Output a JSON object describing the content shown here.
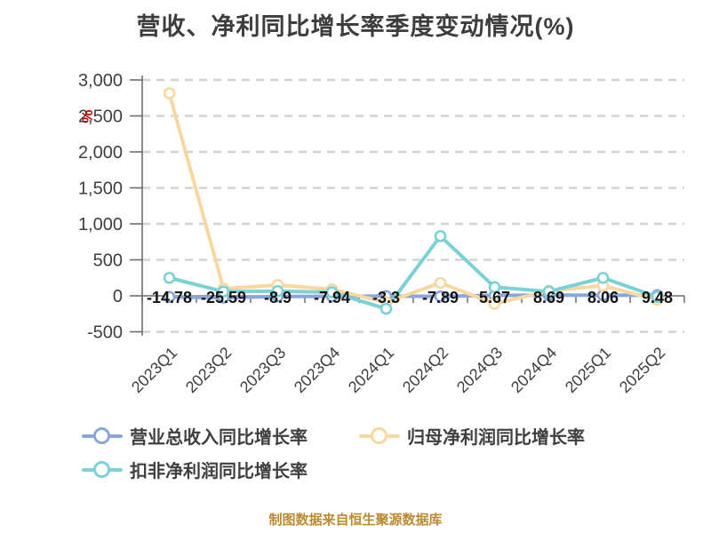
{
  "title": "营收、净利同比增长率季度变动情况(%)",
  "caption": "制图数据来自恒生聚源数据库",
  "y_axis": {
    "unit": "%",
    "unit_color": "#c00000",
    "tick_labels": [
      "-500",
      "0",
      "500",
      "1,000",
      "1,500",
      "2,000",
      "2,500",
      "3,000"
    ],
    "tick_values": [
      -500,
      0,
      500,
      1000,
      1500,
      2000,
      2500,
      3000
    ]
  },
  "chart_data": {
    "type": "line",
    "title": "营收、净利同比增长率季度变动情况(%)",
    "xlabel": "",
    "ylabel": "%",
    "ylim": [
      -500,
      3000
    ],
    "grid": "horizontal dashed",
    "legend_position": "bottom-left",
    "categories": [
      "2023Q1",
      "2023Q2",
      "2023Q3",
      "2023Q4",
      "2024Q1",
      "2024Q2",
      "2024Q3",
      "2024Q4",
      "2025Q1",
      "2025Q2"
    ],
    "series": [
      {
        "name": "营业总收入同比增长率",
        "slug": "total-revenue-yoy-growth",
        "color": "#8ba6d9",
        "values": [
          -14.78,
          -25.59,
          -8.9,
          -7.94,
          -3.3,
          -7.89,
          5.67,
          8.69,
          8.06,
          9.48
        ],
        "labels": [
          "-14.78",
          "-25.59",
          "-8.9",
          "-7.94",
          "-3.3",
          "-7.89",
          "5.67",
          "8.69",
          "8.06",
          "9.48"
        ]
      },
      {
        "name": "归母净利润同比增长率",
        "slug": "net-profit-yoy-growth",
        "color": "#f8d8a0",
        "values": [
          2815,
          100,
          150,
          90,
          -90,
          180,
          -110,
          70,
          140,
          -55
        ],
        "labels": null
      },
      {
        "name": "扣非净利润同比增长率",
        "slug": "non-gaap-profit-yoy-growth",
        "color": "#7bd2d6",
        "values": [
          250,
          60,
          65,
          50,
          -180,
          830,
          120,
          60,
          250,
          -15
        ],
        "labels": null
      }
    ]
  }
}
